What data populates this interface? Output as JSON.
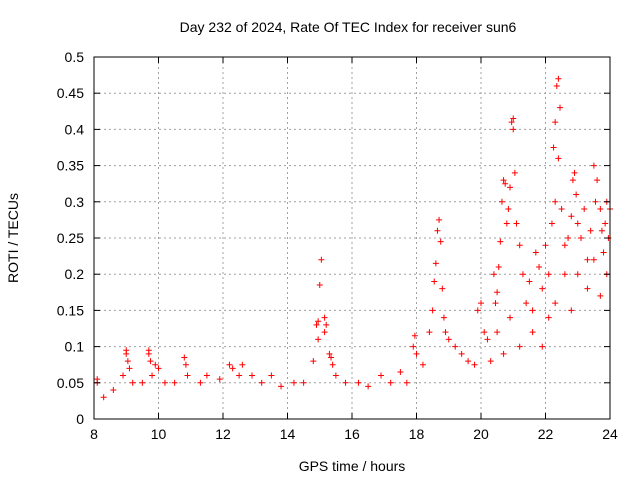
{
  "chart_data": {
    "type": "scatter",
    "title": "Day 232 of 2024, Rate Of TEC Index for receiver sun6",
    "xlabel": "GPS time / hours",
    "ylabel": "ROTI / TECUs",
    "xlim": [
      8,
      24
    ],
    "ylim": [
      0,
      0.5
    ],
    "x_ticks": [
      8,
      10,
      12,
      14,
      16,
      18,
      20,
      22,
      24
    ],
    "x_tick_labels": [
      "8",
      "10",
      "12",
      "14",
      "16",
      "18",
      "20",
      "22",
      "24"
    ],
    "y_ticks": [
      0,
      0.05,
      0.1,
      0.15,
      0.2,
      0.25,
      0.3,
      0.35,
      0.4,
      0.45,
      0.5
    ],
    "y_tick_labels": [
      "0",
      "0.05",
      "0.1",
      "0.15",
      "0.2",
      "0.25",
      "0.3",
      "0.35",
      "0.4",
      "0.45",
      "0.5"
    ],
    "grid": true,
    "marker": "+",
    "colors": {
      "points": "#ff0000",
      "grid": "#a0a0a0",
      "axes": "#000000"
    },
    "series": [
      {
        "points": [
          [
            8.1,
            0.055
          ],
          [
            8.1,
            0.05
          ],
          [
            8.3,
            0.03
          ],
          [
            8.6,
            0.04
          ],
          [
            8.9,
            0.06
          ],
          [
            9.0,
            0.095
          ],
          [
            9.0,
            0.09
          ],
          [
            9.05,
            0.08
          ],
          [
            9.1,
            0.07
          ],
          [
            9.2,
            0.05
          ],
          [
            9.5,
            0.05
          ],
          [
            9.7,
            0.095
          ],
          [
            9.7,
            0.09
          ],
          [
            9.75,
            0.08
          ],
          [
            9.8,
            0.06
          ],
          [
            9.9,
            0.075
          ],
          [
            10.0,
            0.07
          ],
          [
            10.2,
            0.05
          ],
          [
            10.5,
            0.05
          ],
          [
            10.8,
            0.085
          ],
          [
            10.85,
            0.075
          ],
          [
            10.9,
            0.06
          ],
          [
            11.3,
            0.05
          ],
          [
            11.5,
            0.06
          ],
          [
            11.9,
            0.055
          ],
          [
            12.2,
            0.075
          ],
          [
            12.3,
            0.07
          ],
          [
            12.5,
            0.06
          ],
          [
            12.6,
            0.075
          ],
          [
            12.9,
            0.06
          ],
          [
            13.2,
            0.05
          ],
          [
            13.5,
            0.06
          ],
          [
            13.8,
            0.045
          ],
          [
            14.2,
            0.05
          ],
          [
            14.5,
            0.05
          ],
          [
            14.8,
            0.08
          ],
          [
            14.9,
            0.13
          ],
          [
            14.95,
            0.135
          ],
          [
            15.0,
            0.185
          ],
          [
            15.05,
            0.22
          ],
          [
            14.95,
            0.11
          ],
          [
            15.15,
            0.14
          ],
          [
            15.2,
            0.13
          ],
          [
            15.15,
            0.12
          ],
          [
            15.3,
            0.09
          ],
          [
            15.35,
            0.085
          ],
          [
            15.4,
            0.075
          ],
          [
            15.5,
            0.06
          ],
          [
            15.8,
            0.05
          ],
          [
            16.2,
            0.05
          ],
          [
            16.5,
            0.045
          ],
          [
            16.9,
            0.06
          ],
          [
            17.2,
            0.05
          ],
          [
            17.5,
            0.065
          ],
          [
            17.7,
            0.05
          ],
          [
            17.9,
            0.1
          ],
          [
            17.95,
            0.115
          ],
          [
            18.0,
            0.09
          ],
          [
            18.2,
            0.075
          ],
          [
            18.4,
            0.12
          ],
          [
            18.5,
            0.15
          ],
          [
            18.55,
            0.19
          ],
          [
            18.6,
            0.215
          ],
          [
            18.65,
            0.26
          ],
          [
            18.7,
            0.275
          ],
          [
            18.75,
            0.245
          ],
          [
            18.8,
            0.18
          ],
          [
            18.85,
            0.14
          ],
          [
            18.9,
            0.12
          ],
          [
            19.0,
            0.11
          ],
          [
            19.2,
            0.1
          ],
          [
            19.4,
            0.09
          ],
          [
            19.6,
            0.08
          ],
          [
            19.8,
            0.075
          ],
          [
            19.9,
            0.15
          ],
          [
            20.0,
            0.16
          ],
          [
            20.1,
            0.12
          ],
          [
            20.2,
            0.11
          ],
          [
            20.4,
            0.2
          ],
          [
            20.45,
            0.16
          ],
          [
            20.5,
            0.175
          ],
          [
            20.55,
            0.21
          ],
          [
            20.6,
            0.245
          ],
          [
            20.65,
            0.3
          ],
          [
            20.7,
            0.33
          ],
          [
            20.75,
            0.325
          ],
          [
            20.8,
            0.27
          ],
          [
            20.85,
            0.29
          ],
          [
            20.9,
            0.32
          ],
          [
            20.95,
            0.41
          ],
          [
            21.0,
            0.415
          ],
          [
            21.0,
            0.4
          ],
          [
            21.05,
            0.34
          ],
          [
            21.1,
            0.27
          ],
          [
            21.2,
            0.24
          ],
          [
            21.3,
            0.2
          ],
          [
            21.5,
            0.19
          ],
          [
            21.6,
            0.15
          ],
          [
            21.7,
            0.23
          ],
          [
            21.8,
            0.21
          ],
          [
            21.9,
            0.18
          ],
          [
            22.0,
            0.24
          ],
          [
            22.1,
            0.2
          ],
          [
            22.2,
            0.27
          ],
          [
            22.25,
            0.375
          ],
          [
            22.3,
            0.41
          ],
          [
            22.35,
            0.46
          ],
          [
            22.4,
            0.47
          ],
          [
            22.45,
            0.43
          ],
          [
            22.3,
            0.3
          ],
          [
            22.4,
            0.36
          ],
          [
            22.5,
            0.29
          ],
          [
            22.6,
            0.24
          ],
          [
            22.7,
            0.25
          ],
          [
            22.8,
            0.28
          ],
          [
            22.85,
            0.33
          ],
          [
            22.9,
            0.34
          ],
          [
            22.95,
            0.31
          ],
          [
            23.0,
            0.27
          ],
          [
            23.1,
            0.25
          ],
          [
            23.2,
            0.29
          ],
          [
            23.3,
            0.22
          ],
          [
            23.4,
            0.26
          ],
          [
            23.5,
            0.35
          ],
          [
            23.55,
            0.3
          ],
          [
            23.6,
            0.33
          ],
          [
            23.7,
            0.29
          ],
          [
            23.75,
            0.26
          ],
          [
            23.8,
            0.23
          ],
          [
            23.85,
            0.27
          ],
          [
            23.9,
            0.3
          ],
          [
            23.95,
            0.25
          ],
          [
            24.0,
            0.29
          ],
          [
            23.9,
            0.2
          ],
          [
            23.7,
            0.17
          ],
          [
            23.5,
            0.22
          ],
          [
            23.3,
            0.18
          ],
          [
            23.0,
            0.2
          ],
          [
            22.8,
            0.15
          ],
          [
            22.6,
            0.2
          ],
          [
            22.3,
            0.16
          ],
          [
            22.1,
            0.14
          ],
          [
            21.9,
            0.1
          ],
          [
            21.6,
            0.12
          ],
          [
            21.4,
            0.16
          ],
          [
            21.2,
            0.1
          ],
          [
            20.9,
            0.14
          ],
          [
            20.7,
            0.09
          ],
          [
            20.5,
            0.12
          ],
          [
            20.3,
            0.08
          ]
        ]
      }
    ]
  }
}
